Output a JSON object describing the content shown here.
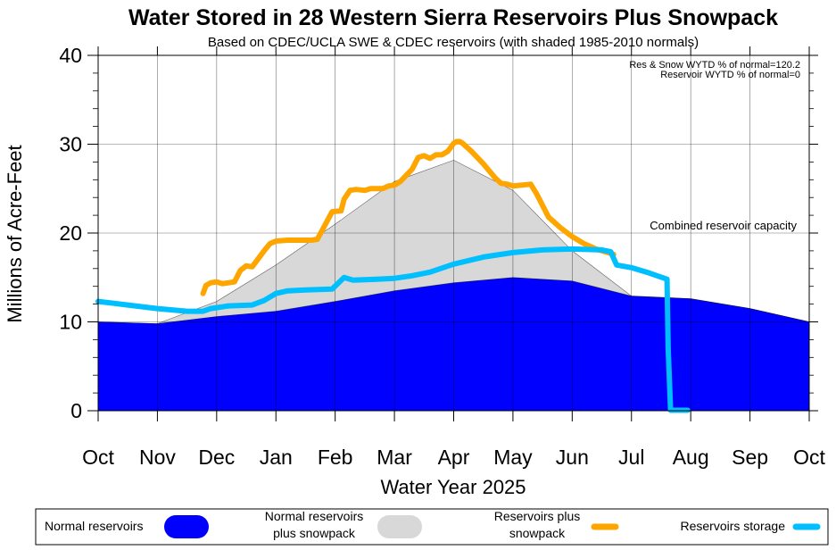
{
  "chart_data": {
    "type": "area",
    "title": "Water Stored in 28 Western Sierra Reservoirs Plus Snowpack",
    "subtitle": "Based on CDEC/UCLA SWE & CDEC reservoirs (with shaded 1985-2010 normals)",
    "xlabel": "Water Year 2025",
    "ylabel": "Millions of Acre-Feet",
    "ylim": [
      0,
      40
    ],
    "yticks": [
      0,
      10,
      20,
      30,
      40
    ],
    "xlim": [
      0,
      12
    ],
    "xticks": [
      "Oct",
      "Nov",
      "Dec",
      "Jan",
      "Feb",
      "Mar",
      "Apr",
      "May",
      "Jun",
      "Jul",
      "Aug",
      "Sep",
      "Oct"
    ],
    "annotations": [
      "Res & Snow WYTD % of normal=120.2",
      "Reservoir WYTD % of normal=0"
    ],
    "reference_lines": [
      {
        "label": "Combined reservoir capacity",
        "y": 20
      }
    ],
    "grid": true,
    "legend_position": "bottom",
    "series": [
      {
        "name": "Normal reservoirs",
        "kind": "area",
        "color": "#0000ff",
        "x": [
          0,
          1,
          2,
          3,
          4,
          5,
          6,
          7,
          8,
          9,
          10,
          11,
          12
        ],
        "y": [
          10.0,
          9.8,
          10.6,
          11.2,
          12.3,
          13.5,
          14.4,
          15.0,
          14.6,
          12.9,
          12.6,
          11.5,
          10.0
        ]
      },
      {
        "name": "Normal reservoirs plus snowpack",
        "kind": "area",
        "color": "#d8d8d8",
        "x": [
          0,
          1,
          2,
          3,
          4,
          5,
          6,
          7,
          8,
          9,
          10,
          11,
          12
        ],
        "y": [
          10.0,
          9.8,
          12.3,
          16.4,
          21.0,
          25.8,
          28.2,
          24.8,
          18.0,
          12.9,
          12.6,
          11.5,
          10.0
        ]
      },
      {
        "name": "Reservoirs plus snowpack",
        "kind": "line",
        "color": "#ffa500",
        "x": [
          1.77,
          1.82,
          1.9,
          2.0,
          2.1,
          2.3,
          2.4,
          2.5,
          2.6,
          2.8,
          2.9,
          3.0,
          3.2,
          3.4,
          3.6,
          3.7,
          3.95,
          4.1,
          4.15,
          4.25,
          4.35,
          4.5,
          4.6,
          4.8,
          4.9,
          5.0,
          5.1,
          5.3,
          5.4,
          5.5,
          5.6,
          5.7,
          5.8,
          5.9,
          6.0,
          6.05,
          6.1,
          6.15,
          6.3,
          6.5,
          6.7,
          6.8,
          6.9,
          7.0,
          7.15,
          7.3,
          7.4,
          7.6,
          7.8,
          8.0,
          8.2,
          8.4,
          8.6,
          8.7
        ],
        "y": [
          13.2,
          14.1,
          14.4,
          14.5,
          14.3,
          14.5,
          15.8,
          16.3,
          16.2,
          18.0,
          18.8,
          19.1,
          19.2,
          19.2,
          19.2,
          19.3,
          22.4,
          22.5,
          23.8,
          24.8,
          24.9,
          24.8,
          25.0,
          25.0,
          25.3,
          25.4,
          25.8,
          27.2,
          28.5,
          28.7,
          28.4,
          28.8,
          28.8,
          29.2,
          30.1,
          30.3,
          30.3,
          30.1,
          29.2,
          27.8,
          26.2,
          25.6,
          25.5,
          25.3,
          25.4,
          25.5,
          24.4,
          21.8,
          20.6,
          19.6,
          18.8,
          18.2,
          17.8,
          17.6
        ]
      },
      {
        "name": "Reservoirs storage",
        "kind": "line",
        "color": "#00bfff",
        "x": [
          0,
          0.5,
          1.0,
          1.5,
          1.77,
          1.9,
          2.2,
          2.6,
          2.8,
          3.0,
          3.2,
          3.5,
          3.95,
          4.15,
          4.3,
          4.7,
          5.0,
          5.3,
          5.6,
          6.0,
          6.5,
          7.0,
          7.5,
          8.0,
          8.5,
          8.65,
          8.75,
          9.0,
          9.3,
          9.6,
          9.62,
          9.66,
          9.95
        ],
        "y": [
          12.3,
          11.9,
          11.5,
          11.2,
          11.2,
          11.5,
          11.8,
          11.9,
          12.4,
          13.2,
          13.5,
          13.6,
          13.7,
          15.0,
          14.7,
          14.8,
          14.9,
          15.2,
          15.6,
          16.5,
          17.3,
          17.8,
          18.1,
          18.2,
          18.1,
          17.9,
          16.4,
          16.1,
          15.5,
          14.8,
          7.0,
          0.05,
          0.05
        ]
      }
    ]
  },
  "legend": [
    {
      "label": "Normal reservoirs",
      "color": "#0000ff"
    },
    {
      "label": "Normal reservoirs plus snowpack",
      "color": "#d8d8d8"
    },
    {
      "label": "Reservoirs plus snowpack",
      "color": "#ffa500"
    },
    {
      "label": "Reservoirs storage",
      "color": "#00bfff"
    }
  ]
}
